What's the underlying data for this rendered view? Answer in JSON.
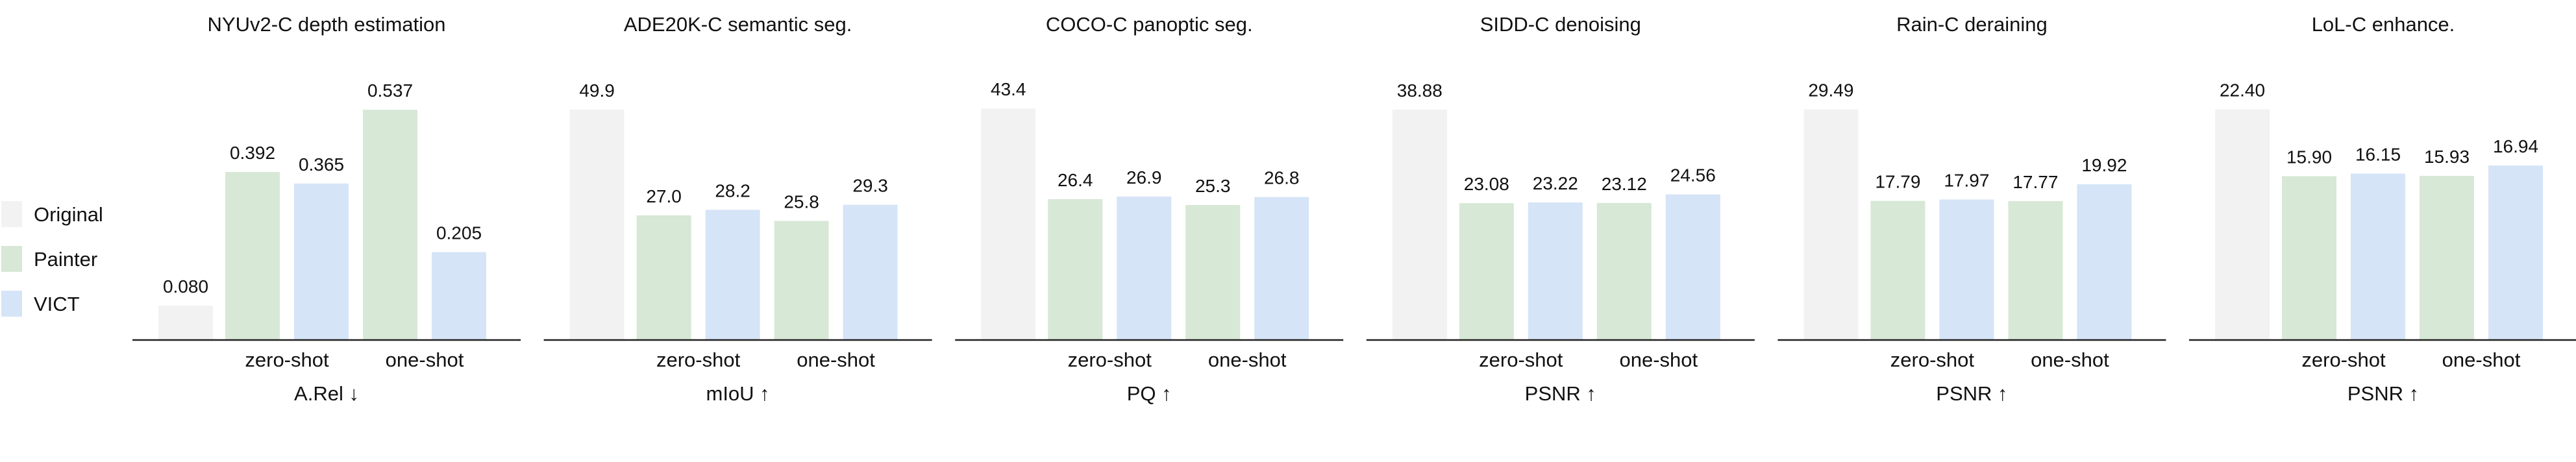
{
  "legend": [
    {
      "name": "Original",
      "color": "#f2f2f2"
    },
    {
      "name": "Painter",
      "color": "#d7e8d6"
    },
    {
      "name": "VICT",
      "color": "#d6e4f7"
    }
  ],
  "chart_data": [
    {
      "type": "bar",
      "title": "NYUv2-C depth estimation",
      "xlabel": "A.Rel ↓",
      "groups": [
        "zero-shot",
        "one-shot"
      ],
      "original": {
        "value": 0.08,
        "label": "0.080"
      },
      "series": [
        {
          "name": "Painter",
          "values": [
            0.392,
            0.537
          ],
          "labels": [
            "0.392",
            "0.537"
          ]
        },
        {
          "name": "VICT",
          "values": [
            0.365,
            0.205
          ],
          "labels": [
            "0.365",
            "0.205"
          ]
        }
      ],
      "ylim": [
        0,
        0.56
      ]
    },
    {
      "type": "bar",
      "title": "ADE20K-C semantic seg.",
      "xlabel": "mIoU ↑",
      "groups": [
        "zero-shot",
        "one-shot"
      ],
      "original": {
        "value": 49.9,
        "label": "49.9"
      },
      "series": [
        {
          "name": "Painter",
          "values": [
            27.0,
            25.8
          ],
          "labels": [
            "27.0",
            "25.8"
          ]
        },
        {
          "name": "VICT",
          "values": [
            28.2,
            29.3
          ],
          "labels": [
            "28.2",
            "29.3"
          ]
        }
      ],
      "ylim": [
        0,
        52
      ]
    },
    {
      "type": "bar",
      "title": "COCO-C panoptic seg.",
      "xlabel": "PQ ↑",
      "groups": [
        "zero-shot",
        "one-shot"
      ],
      "original": {
        "value": 43.4,
        "label": "43.4"
      },
      "series": [
        {
          "name": "Painter",
          "values": [
            26.4,
            25.3
          ],
          "labels": [
            "26.4",
            "25.3"
          ]
        },
        {
          "name": "VICT",
          "values": [
            26.9,
            26.8
          ],
          "labels": [
            "26.9",
            "26.8"
          ]
        }
      ],
      "ylim": [
        0,
        45
      ]
    },
    {
      "type": "bar",
      "title": "SIDD-C denoising",
      "xlabel": "PSNR ↑",
      "groups": [
        "zero-shot",
        "one-shot"
      ],
      "original": {
        "value": 38.88,
        "label": "38.88"
      },
      "series": [
        {
          "name": "Painter",
          "values": [
            23.08,
            23.12
          ],
          "labels": [
            "23.08",
            "23.12"
          ]
        },
        {
          "name": "VICT",
          "values": [
            23.22,
            24.56
          ],
          "labels": [
            "23.22",
            "24.56"
          ]
        }
      ],
      "ylim": [
        0,
        40.5
      ]
    },
    {
      "type": "bar",
      "title": "Rain-C deraining",
      "xlabel": "PSNR ↑",
      "groups": [
        "zero-shot",
        "one-shot"
      ],
      "original": {
        "value": 29.49,
        "label": "29.49"
      },
      "series": [
        {
          "name": "Painter",
          "values": [
            17.79,
            17.77
          ],
          "labels": [
            "17.79",
            "17.77"
          ]
        },
        {
          "name": "VICT",
          "values": [
            17.97,
            19.92
          ],
          "labels": [
            "17.97",
            "19.92"
          ]
        }
      ],
      "ylim": [
        0,
        30.7
      ]
    },
    {
      "type": "bar",
      "title": "LoL-C enhance.",
      "xlabel": "PSNR ↑",
      "groups": [
        "zero-shot",
        "one-shot"
      ],
      "original": {
        "value": 22.4,
        "label": "22.40"
      },
      "series": [
        {
          "name": "Painter",
          "values": [
            15.9,
            15.93
          ],
          "labels": [
            "15.90",
            "15.93"
          ]
        },
        {
          "name": "VICT",
          "values": [
            16.15,
            16.94
          ],
          "labels": [
            "16.15",
            "16.94"
          ]
        }
      ],
      "ylim": [
        0,
        23.3
      ]
    }
  ]
}
